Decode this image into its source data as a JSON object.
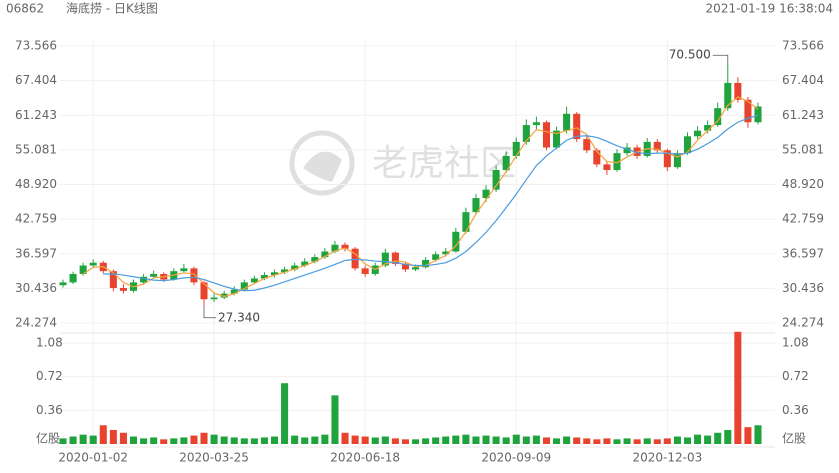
{
  "chart_data": {
    "type": "candlestick",
    "code": "06862",
    "title": "海底捞 - 日K线图",
    "timestamp": "2021-01-19 16:38:04",
    "watermark": "老虎社区",
    "up_color": "#1fa33c",
    "down_color": "#e8432f",
    "categories": [
      null,
      null,
      null,
      "2020-01-02",
      null,
      null,
      null,
      null,
      null,
      null,
      null,
      null,
      null,
      null,
      null,
      "2020-03-25",
      null,
      null,
      null,
      null,
      null,
      null,
      null,
      null,
      null,
      null,
      null,
      null,
      null,
      null,
      "2020-06-18",
      null,
      null,
      null,
      null,
      null,
      null,
      null,
      null,
      null,
      null,
      null,
      null,
      null,
      null,
      "2020-09-09",
      null,
      null,
      null,
      null,
      null,
      null,
      null,
      null,
      null,
      null,
      null,
      null,
      null,
      null,
      "2020-12-03",
      null,
      null,
      null,
      null,
      null,
      null,
      null,
      null,
      null
    ],
    "candles": {
      "open": [
        31.0,
        31.5,
        33.0,
        34.5,
        35.0,
        33.5,
        30.5,
        30.0,
        31.5,
        32.5,
        33.0,
        32.0,
        33.5,
        34.0,
        31.5,
        28.5,
        28.8,
        29.5,
        30.2,
        31.5,
        32.2,
        32.8,
        33.3,
        33.8,
        34.5,
        35.2,
        36.0,
        37.0,
        38.2,
        37.5,
        34.0,
        33.0,
        34.5,
        36.8,
        34.8,
        33.8,
        34.2,
        35.5,
        36.5,
        37.0,
        40.5,
        44.0,
        46.5,
        48.0,
        51.5,
        54.0,
        56.5,
        59.5,
        60.0,
        55.5,
        58.5,
        61.5,
        57.0,
        55.0,
        52.5,
        51.5,
        54.5,
        55.5,
        54.0,
        56.5,
        55.0,
        52.0,
        54.5,
        57.5,
        58.5,
        59.5,
        62.5,
        67.0,
        64.0,
        60.0
      ],
      "high": [
        32.0,
        33.4,
        35.0,
        35.6,
        35.3,
        33.8,
        31.2,
        32.0,
        33.0,
        33.6,
        33.3,
        34.0,
        34.8,
        34.3,
        31.8,
        29.5,
        30.0,
        30.8,
        32.0,
        32.7,
        33.3,
        33.8,
        34.3,
        35.0,
        35.8,
        36.5,
        37.6,
        38.9,
        38.6,
        37.8,
        34.5,
        35.0,
        37.5,
        37.0,
        35.2,
        34.7,
        36.0,
        37.0,
        37.6,
        41.2,
        44.8,
        47.2,
        48.8,
        52.3,
        54.8,
        57.3,
        60.5,
        61.0,
        60.3,
        59.2,
        62.8,
        61.8,
        57.5,
        55.4,
        53.0,
        55.2,
        56.3,
        56.0,
        57.2,
        57.0,
        55.3,
        55.0,
        58.2,
        59.3,
        60.3,
        63.5,
        70.5,
        68.0,
        64.5,
        63.5
      ],
      "low": [
        30.6,
        31.2,
        32.7,
        34.1,
        33.1,
        29.9,
        29.5,
        29.7,
        31.1,
        32.2,
        31.6,
        31.8,
        33.1,
        31.0,
        27.34,
        28.0,
        28.5,
        29.2,
        30.0,
        31.2,
        31.9,
        32.4,
        33.0,
        33.5,
        34.2,
        34.9,
        35.7,
        36.7,
        37.0,
        33.6,
        32.5,
        32.7,
        34.2,
        34.4,
        33.4,
        33.5,
        34.0,
        35.2,
        36.1,
        36.8,
        40.2,
        43.5,
        45.8,
        47.6,
        51.0,
        53.5,
        56.0,
        58.8,
        55.0,
        55.2,
        58.0,
        56.5,
        54.5,
        52.0,
        50.6,
        51.2,
        54.0,
        53.5,
        53.7,
        54.5,
        51.3,
        51.7,
        54.2,
        57.0,
        58.0,
        59.2,
        62.0,
        63.5,
        59.0,
        59.6
      ],
      "close": [
        31.5,
        33.0,
        34.5,
        35.0,
        33.5,
        30.5,
        30.0,
        31.5,
        32.5,
        33.0,
        32.0,
        33.5,
        34.0,
        31.5,
        28.5,
        28.8,
        29.5,
        30.2,
        31.5,
        32.2,
        32.8,
        33.3,
        33.8,
        34.5,
        35.2,
        36.0,
        37.0,
        38.2,
        37.5,
        34.0,
        33.0,
        34.5,
        36.8,
        34.8,
        33.8,
        34.2,
        35.5,
        36.5,
        37.0,
        40.5,
        44.0,
        46.5,
        48.0,
        51.5,
        54.0,
        56.5,
        59.5,
        60.0,
        55.5,
        58.5,
        61.5,
        57.0,
        55.0,
        52.5,
        51.5,
        54.5,
        55.5,
        54.0,
        56.5,
        55.0,
        52.0,
        54.5,
        57.5,
        58.5,
        59.5,
        62.5,
        67.0,
        64.0,
        60.0,
        62.8
      ]
    },
    "series": [
      {
        "color": "#f5a33c",
        "values": [
          null,
          null,
          33.0,
          34.2,
          34.3,
          33.2,
          31.5,
          30.7,
          31.2,
          32.3,
          32.5,
          32.8,
          33.2,
          33.0,
          31.3,
          29.6,
          29.0,
          29.5,
          30.4,
          31.3,
          32.2,
          32.8,
          33.3,
          33.9,
          34.5,
          35.2,
          36.1,
          37.1,
          37.6,
          36.6,
          34.8,
          33.8,
          34.8,
          35.3,
          35.1,
          34.3,
          34.5,
          35.4,
          36.3,
          38.0,
          40.5,
          43.7,
          46.2,
          48.7,
          51.2,
          54.0,
          56.7,
          58.7,
          58.3,
          58.0,
          58.5,
          59.0,
          57.8,
          54.8,
          53.0,
          52.8,
          53.8,
          54.7,
          55.3,
          55.2,
          54.5,
          53.8,
          54.7,
          56.8,
          58.5,
          60.2,
          63.0,
          64.5,
          63.7,
          62.3
        ]
      },
      {
        "color": "#4a9be0",
        "values": [
          null,
          null,
          null,
          null,
          33.0,
          33.0,
          32.8,
          32.5,
          32.2,
          31.9,
          31.8,
          32.0,
          32.3,
          32.4,
          32.0,
          31.4,
          30.8,
          30.3,
          30.0,
          30.1,
          30.5,
          31.0,
          31.6,
          32.2,
          32.8,
          33.4,
          34.0,
          34.7,
          35.4,
          35.6,
          35.5,
          35.3,
          35.2,
          35.0,
          34.7,
          34.5,
          34.5,
          34.7,
          35.0,
          35.8,
          37.0,
          38.6,
          40.4,
          42.5,
          44.8,
          47.2,
          49.8,
          52.3,
          54.0,
          55.4,
          56.8,
          57.5,
          57.6,
          57.3,
          56.6,
          55.8,
          55.2,
          54.6,
          54.4,
          54.5,
          54.5,
          54.3,
          54.5,
          55.2,
          56.2,
          57.3,
          58.8,
          60.0,
          60.7,
          61.2
        ]
      }
    ],
    "ylim": [
      24.274,
      73.566
    ],
    "yticks": [
      24.274,
      30.436,
      36.597,
      42.759,
      {
        "value": 48.92,
        "label": "48.920"
      },
      55.081,
      61.243,
      67.404,
      73.566
    ],
    "annotations": [
      {
        "value": 70.5,
        "label": "70.500"
      },
      {
        "value": 27.34,
        "label": "27.340"
      }
    ],
    "volume": {
      "unit": "亿股",
      "values": [
        0.06,
        0.08,
        0.1,
        0.09,
        0.2,
        0.15,
        0.12,
        0.08,
        0.06,
        0.07,
        0.05,
        0.06,
        0.07,
        0.09,
        0.12,
        0.1,
        0.08,
        0.07,
        0.06,
        0.06,
        0.07,
        0.08,
        0.65,
        0.09,
        0.07,
        0.08,
        0.1,
        0.52,
        0.12,
        0.09,
        0.08,
        0.07,
        0.08,
        0.06,
        0.05,
        0.05,
        0.06,
        0.07,
        0.08,
        0.09,
        0.1,
        0.08,
        0.09,
        0.08,
        0.07,
        0.1,
        0.08,
        0.09,
        0.07,
        0.06,
        0.08,
        0.07,
        0.06,
        0.05,
        0.06,
        0.05,
        0.06,
        0.05,
        0.06,
        0.05,
        0.06,
        0.08,
        0.07,
        0.1,
        0.09,
        0.12,
        0.15,
        1.2,
        0.18,
        0.2
      ],
      "ylim": [
        0,
        1.08
      ],
      "yticks": [
        0.36,
        0.72,
        1.08
      ]
    }
  }
}
